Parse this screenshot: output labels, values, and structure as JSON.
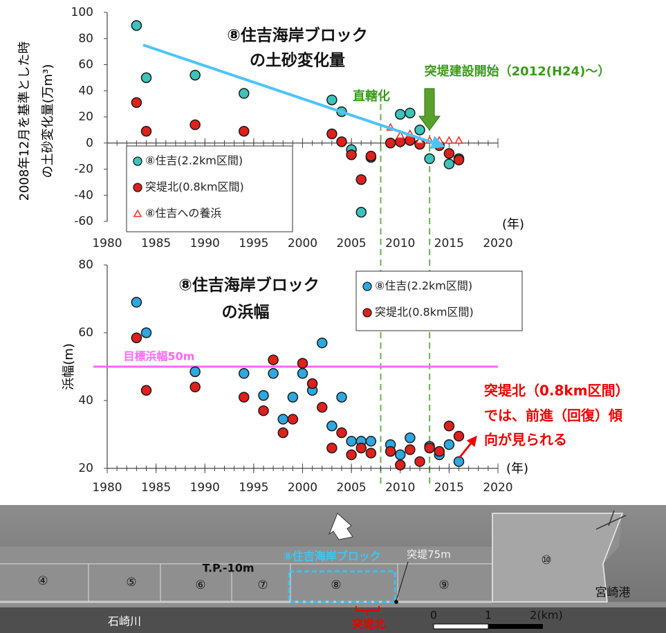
{
  "chart_data": [
    {
      "type": "scatter",
      "title": [
        "⑧住吉海岸ブロック",
        "の土砂変化量"
      ],
      "ylabel": [
        "2008年12月を基準とした時",
        "の土砂変化量(万m³)"
      ],
      "xlabel": "(年)",
      "xlim": [
        1980,
        2020
      ],
      "xticks": [
        1980,
        1985,
        1990,
        1995,
        2000,
        2005,
        2010,
        2015,
        2020
      ],
      "ylim": [
        -60,
        100
      ],
      "yticks": [
        -60,
        -40,
        -20,
        0,
        20,
        40,
        60,
        80,
        100
      ],
      "legend": "lower left",
      "annotations": [
        "直轄化",
        "突堤建設開始（2012(H24)〜）"
      ],
      "vlines": [
        2008,
        2013
      ],
      "series": [
        {
          "name": "⑧住吉(2.2km区間)",
          "color": "#3cc4bc",
          "marker": "circle",
          "x": [
            1983,
            1984,
            1989,
            1994,
            2003,
            2004,
            2005,
            2006,
            2007,
            2010,
            2011,
            2012,
            2013,
            2015,
            2016
          ],
          "values": [
            90,
            50,
            52,
            38,
            33,
            24,
            -5,
            -53,
            -11,
            22,
            23,
            10,
            -12,
            -16,
            -12
          ]
        },
        {
          "name": "突堤北(0.8km区間)",
          "color": "#e0201c",
          "marker": "circle",
          "x": [
            1983,
            1984,
            1989,
            1994,
            2003,
            2004,
            2005,
            2006,
            2007,
            2009,
            2010,
            2011,
            2012,
            2014,
            2015,
            2016
          ],
          "values": [
            31,
            9,
            14,
            9,
            7,
            1,
            -9,
            -28,
            -10,
            0,
            1,
            2,
            -1,
            -2,
            -8,
            -13
          ]
        },
        {
          "name": "⑧住吉への養浜",
          "color": "#ff3030",
          "marker": "triangle",
          "x": [
            2009,
            2010,
            2011,
            2012,
            2013,
            2014,
            2015,
            2016
          ],
          "values": [
            12,
            6,
            7,
            2,
            2,
            2,
            2,
            2
          ]
        }
      ]
    },
    {
      "type": "scatter",
      "title": [
        "⑧住吉海岸ブロック",
        "の浜幅"
      ],
      "ylabel": [
        "浜幅(m)"
      ],
      "xlabel": "(年)",
      "xlim": [
        1980,
        2020
      ],
      "xticks": [
        1980,
        1985,
        1990,
        1995,
        2000,
        2005,
        2010,
        2015,
        2020
      ],
      "ylim": [
        20,
        80
      ],
      "yticks": [
        20,
        40,
        60,
        80
      ],
      "legend": "upper right",
      "hlines": [
        {
          "value": 50,
          "label": "目標浜幅50m",
          "color": "#ff66ff"
        }
      ],
      "annotations": [
        "突堤北（0.8km区間）",
        "では、前進（回復）傾",
        "向が見られる"
      ],
      "series": [
        {
          "name": "⑧住吉(2.2km区間)",
          "color": "#2ea8e0",
          "marker": "circle",
          "x": [
            1983,
            1984,
            1989,
            1994,
            1996,
            1997,
            1998,
            1999,
            2000,
            2001,
            2002,
            2003,
            2004,
            2005,
            2006,
            2007,
            2009,
            2010,
            2011,
            2013,
            2014,
            2015,
            2016
          ],
          "values": [
            69,
            60,
            48.5,
            48,
            41.5,
            48,
            34.5,
            41,
            48,
            43,
            57,
            32.5,
            41,
            28,
            28,
            28,
            27,
            24,
            29,
            26.5,
            24,
            27,
            22
          ]
        },
        {
          "name": "突堤北(0.8km区間)",
          "color": "#e0201c",
          "marker": "circle",
          "x": [
            1983,
            1984,
            1989,
            1994,
            1996,
            1997,
            1998,
            1999,
            2000,
            2001,
            2002,
            2003,
            2004,
            2005,
            2006,
            2007,
            2009,
            2010,
            2011,
            2012,
            2013,
            2014,
            2015,
            2016
          ],
          "values": [
            58.5,
            43,
            44,
            41,
            37,
            52,
            30.5,
            34.5,
            51,
            45,
            38,
            26,
            30.5,
            24,
            26,
            24.5,
            25,
            21,
            25.5,
            22,
            26,
            25,
            32.5,
            29.5
          ]
        }
      ]
    }
  ],
  "map": {
    "zones": [
      "④",
      "⑤",
      "⑥",
      "⑦",
      "⑧",
      "⑨",
      "⑩"
    ],
    "depth_label": "T.P.-10m",
    "block_label": "⑧住吉海岸ブロック",
    "groin_label": "突堤75m",
    "port": "宮崎港",
    "river": "石崎川",
    "groin_north": "突堤北",
    "scale": [
      "0",
      "1",
      "2(km)"
    ]
  }
}
